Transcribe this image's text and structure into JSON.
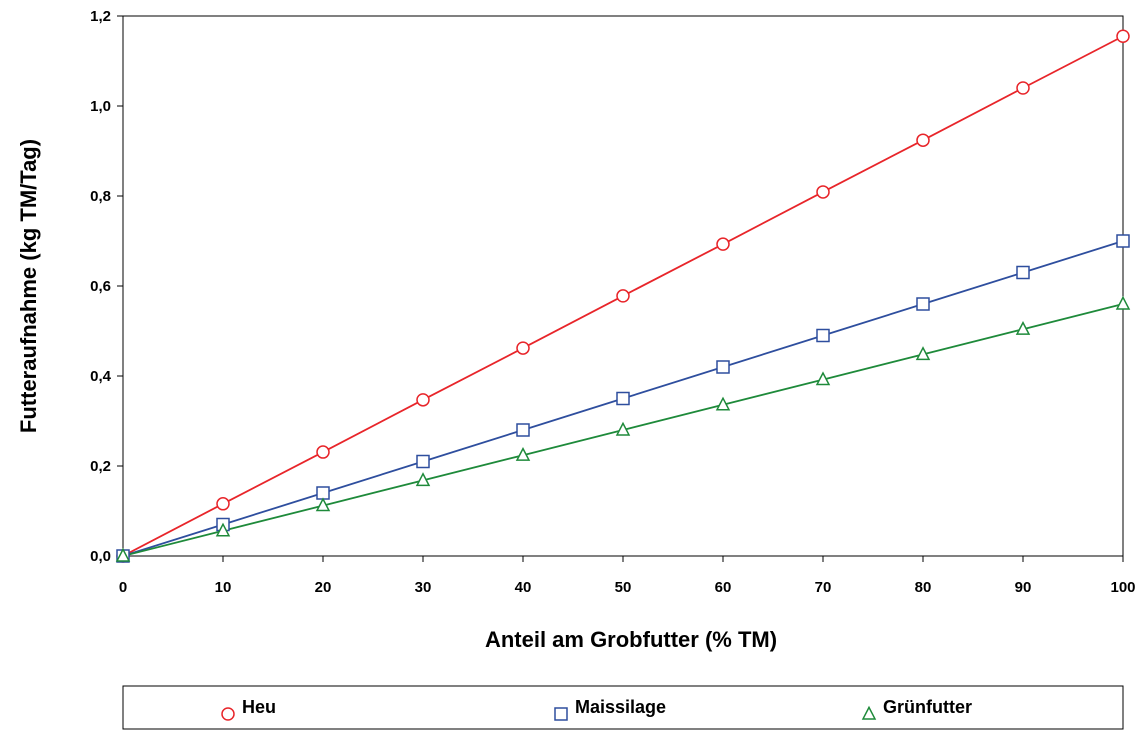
{
  "chart_data": {
    "type": "line",
    "title": "",
    "xlabel": "Anteil am Grobfutter (% TM)",
    "ylabel": "Futteraufnahme (kg TM/Tag)",
    "xlim": [
      0,
      100
    ],
    "ylim": [
      0,
      1.2
    ],
    "x_ticks": [
      0,
      10,
      20,
      30,
      40,
      50,
      60,
      70,
      80,
      90,
      100
    ],
    "y_ticks": [
      "0,0",
      "0,2",
      "0,4",
      "0,6",
      "0,8",
      "1,0",
      "1,2"
    ],
    "y_tick_values": [
      0,
      0.2,
      0.4,
      0.6,
      0.8,
      1.0,
      1.2
    ],
    "grid": false,
    "legend_position": "bottom",
    "x": [
      0,
      10,
      20,
      30,
      40,
      50,
      60,
      70,
      80,
      90,
      100
    ],
    "series": [
      {
        "name": "Heu",
        "marker": "circle",
        "color": "#e8252a",
        "values": [
          0,
          0.116,
          0.231,
          0.347,
          0.462,
          0.578,
          0.693,
          0.809,
          0.924,
          1.04,
          1.155
        ]
      },
      {
        "name": "Maissilage",
        "marker": "square",
        "color": "#2e4e9e",
        "values": [
          0,
          0.07,
          0.14,
          0.21,
          0.28,
          0.35,
          0.42,
          0.49,
          0.56,
          0.63,
          0.7
        ]
      },
      {
        "name": "Grünfutter",
        "marker": "triangle",
        "color": "#1e8a3a",
        "values": [
          0,
          0.056,
          0.112,
          0.168,
          0.224,
          0.28,
          0.336,
          0.392,
          0.448,
          0.504,
          0.56
        ]
      }
    ]
  }
}
